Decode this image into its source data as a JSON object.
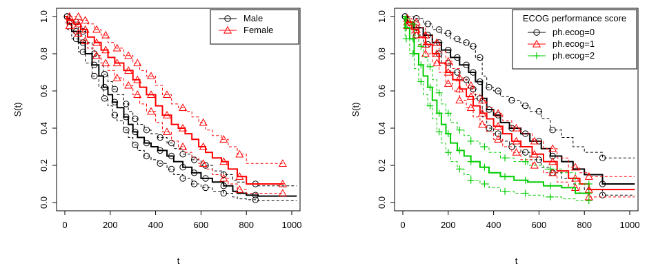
{
  "chart_data": [
    {
      "type": "line",
      "subtype": "kaplan-meier",
      "title": "",
      "xlabel": "t",
      "ylabel": "S(t)",
      "xlim": [
        0,
        1000
      ],
      "ylim": [
        0,
        1
      ],
      "x_ticks": [
        0,
        200,
        400,
        600,
        800,
        1000
      ],
      "y_ticks": [
        0.0,
        0.2,
        0.4,
        0.6,
        0.8,
        1.0
      ],
      "y_tick_labels": [
        "0.0",
        "0.2",
        "0.4",
        "0.6",
        "0.8",
        "1.0"
      ],
      "grid": false,
      "legend": {
        "position": "top-right",
        "title": ""
      },
      "series": [
        {
          "name": "Male",
          "color": "#000000",
          "marker": "circle",
          "x": [
            0,
            12,
            30,
            60,
            90,
            120,
            150,
            170,
            190,
            210,
            230,
            260,
            280,
            300,
            320,
            350,
            380,
            410,
            450,
            480,
            520,
            560,
            600,
            650,
            700,
            740,
            760,
            800,
            850,
            1022
          ],
          "y": [
            1.0,
            0.96,
            0.92,
            0.86,
            0.8,
            0.74,
            0.68,
            0.62,
            0.58,
            0.54,
            0.51,
            0.46,
            0.42,
            0.38,
            0.35,
            0.32,
            0.3,
            0.28,
            0.25,
            0.22,
            0.19,
            0.16,
            0.13,
            0.11,
            0.09,
            0.06,
            0.05,
            0.04,
            0.035,
            0.035
          ],
          "ci_lower": [
            1.0,
            0.93,
            0.88,
            0.81,
            0.75,
            0.68,
            0.62,
            0.56,
            0.52,
            0.47,
            0.44,
            0.39,
            0.35,
            0.31,
            0.28,
            0.25,
            0.23,
            0.21,
            0.18,
            0.15,
            0.13,
            0.1,
            0.08,
            0.06,
            0.05,
            0.03,
            0.02,
            0.015,
            0.01,
            0.01
          ],
          "ci_upper": [
            1.0,
            0.99,
            0.97,
            0.92,
            0.86,
            0.8,
            0.75,
            0.69,
            0.65,
            0.61,
            0.58,
            0.53,
            0.49,
            0.45,
            0.42,
            0.39,
            0.37,
            0.35,
            0.32,
            0.29,
            0.26,
            0.23,
            0.2,
            0.17,
            0.15,
            0.12,
            0.11,
            0.1,
            0.09,
            0.09
          ],
          "censor_x": [
            10,
            50,
            80,
            130,
            175,
            220,
            270,
            310,
            360,
            420,
            470,
            520,
            570,
            620,
            700,
            840
          ]
        },
        {
          "name": "Female",
          "color": "#ff0000",
          "marker": "triangle",
          "x": [
            0,
            10,
            40,
            70,
            100,
            130,
            160,
            190,
            220,
            260,
            300,
            330,
            360,
            400,
            430,
            470,
            500,
            530,
            560,
            590,
            620,
            650,
            690,
            720,
            760,
            800,
            965
          ],
          "y": [
            1.0,
            0.98,
            0.96,
            0.93,
            0.89,
            0.86,
            0.82,
            0.78,
            0.75,
            0.71,
            0.66,
            0.62,
            0.58,
            0.52,
            0.47,
            0.42,
            0.4,
            0.37,
            0.34,
            0.3,
            0.27,
            0.24,
            0.22,
            0.18,
            0.14,
            0.1,
            0.1
          ],
          "ci_lower": [
            1.0,
            0.95,
            0.91,
            0.87,
            0.83,
            0.79,
            0.75,
            0.71,
            0.67,
            0.63,
            0.58,
            0.53,
            0.49,
            0.43,
            0.38,
            0.33,
            0.3,
            0.27,
            0.24,
            0.21,
            0.18,
            0.15,
            0.13,
            0.1,
            0.07,
            0.05,
            0.05
          ],
          "ci_upper": [
            1.0,
            1.0,
            1.0,
            0.98,
            0.96,
            0.93,
            0.9,
            0.86,
            0.83,
            0.79,
            0.75,
            0.71,
            0.68,
            0.63,
            0.58,
            0.53,
            0.51,
            0.49,
            0.46,
            0.43,
            0.39,
            0.36,
            0.34,
            0.3,
            0.26,
            0.21,
            0.21
          ],
          "censor_x": [
            20,
            60,
            90,
            140,
            180,
            230,
            280,
            320,
            380,
            450,
            520,
            610,
            700,
            770,
            960
          ]
        }
      ]
    },
    {
      "type": "line",
      "subtype": "kaplan-meier",
      "title": "",
      "xlabel": "t",
      "ylabel": "S(t)",
      "xlim": [
        0,
        1000
      ],
      "ylim": [
        0,
        1
      ],
      "x_ticks": [
        0,
        200,
        400,
        600,
        800,
        1000
      ],
      "y_ticks": [
        0.0,
        0.2,
        0.4,
        0.6,
        0.8,
        1.0
      ],
      "y_tick_labels": [
        "0.0",
        "0.2",
        "0.4",
        "0.6",
        "0.8",
        "1.0"
      ],
      "grid": false,
      "legend": {
        "position": "top-right",
        "title": "ECOG performance score"
      },
      "series": [
        {
          "name": "ph.ecog=0",
          "color": "#000000",
          "marker": "circle",
          "x": [
            0,
            20,
            50,
            90,
            130,
            170,
            210,
            250,
            290,
            320,
            350,
            370,
            400,
            430,
            470,
            520,
            560,
            610,
            650,
            700,
            750,
            800,
            880,
            1022
          ],
          "y": [
            1.0,
            0.97,
            0.94,
            0.9,
            0.86,
            0.82,
            0.78,
            0.74,
            0.7,
            0.65,
            0.56,
            0.5,
            0.47,
            0.43,
            0.4,
            0.37,
            0.33,
            0.29,
            0.25,
            0.22,
            0.18,
            0.15,
            0.1,
            0.1
          ],
          "ci_lower": [
            1.0,
            0.94,
            0.9,
            0.85,
            0.8,
            0.75,
            0.7,
            0.66,
            0.61,
            0.56,
            0.46,
            0.4,
            0.37,
            0.33,
            0.3,
            0.27,
            0.23,
            0.19,
            0.16,
            0.13,
            0.1,
            0.07,
            0.04,
            0.04
          ],
          "ci_upper": [
            1.0,
            1.0,
            0.99,
            0.96,
            0.93,
            0.91,
            0.88,
            0.86,
            0.84,
            0.78,
            0.68,
            0.62,
            0.6,
            0.57,
            0.55,
            0.52,
            0.49,
            0.45,
            0.39,
            0.35,
            0.3,
            0.27,
            0.24,
            0.24
          ],
          "censor_x": [
            10,
            60,
            110,
            160,
            200,
            240,
            280,
            310,
            340,
            380,
            420,
            480,
            540,
            600,
            660,
            880
          ]
        },
        {
          "name": "ph.ecog=1",
          "color": "#ff0000",
          "marker": "triangle",
          "x": [
            0,
            15,
            40,
            70,
            100,
            130,
            160,
            190,
            220,
            250,
            280,
            310,
            340,
            370,
            400,
            440,
            480,
            520,
            570,
            620,
            680,
            730,
            780,
            820,
            1022
          ],
          "y": [
            1.0,
            0.97,
            0.93,
            0.89,
            0.85,
            0.8,
            0.75,
            0.7,
            0.66,
            0.61,
            0.57,
            0.52,
            0.48,
            0.45,
            0.41,
            0.37,
            0.33,
            0.3,
            0.26,
            0.22,
            0.17,
            0.13,
            0.1,
            0.07,
            0.07
          ],
          "ci_lower": [
            1.0,
            0.95,
            0.9,
            0.85,
            0.8,
            0.75,
            0.7,
            0.64,
            0.6,
            0.55,
            0.51,
            0.46,
            0.42,
            0.38,
            0.34,
            0.3,
            0.27,
            0.23,
            0.2,
            0.16,
            0.11,
            0.08,
            0.05,
            0.03,
            0.03
          ],
          "ci_upper": [
            1.0,
            0.99,
            0.97,
            0.94,
            0.9,
            0.86,
            0.81,
            0.76,
            0.72,
            0.67,
            0.63,
            0.58,
            0.55,
            0.51,
            0.48,
            0.44,
            0.4,
            0.37,
            0.33,
            0.29,
            0.24,
            0.19,
            0.16,
            0.14,
            0.14
          ],
          "censor_x": [
            20,
            60,
            100,
            150,
            200,
            250,
            300,
            350,
            420,
            500,
            580,
            660,
            760,
            820
          ]
        },
        {
          "name": "ph.ecog=2",
          "color": "#00cc00",
          "marker": "plus",
          "x": [
            0,
            10,
            30,
            50,
            70,
            90,
            110,
            130,
            150,
            170,
            190,
            210,
            240,
            270,
            300,
            340,
            380,
            430,
            490,
            550,
            620,
            700,
            760,
            820
          ],
          "y": [
            1.0,
            0.94,
            0.88,
            0.8,
            0.74,
            0.68,
            0.62,
            0.55,
            0.48,
            0.42,
            0.37,
            0.32,
            0.28,
            0.25,
            0.22,
            0.19,
            0.16,
            0.14,
            0.12,
            0.11,
            0.09,
            0.08,
            0.05,
            0.05
          ],
          "ci_lower": [
            1.0,
            0.88,
            0.8,
            0.72,
            0.65,
            0.58,
            0.52,
            0.45,
            0.38,
            0.32,
            0.27,
            0.22,
            0.18,
            0.15,
            0.12,
            0.1,
            0.08,
            0.06,
            0.05,
            0.04,
            0.03,
            0.02,
            0.01,
            0.01
          ],
          "ci_upper": [
            1.0,
            0.99,
            0.96,
            0.9,
            0.84,
            0.78,
            0.73,
            0.66,
            0.59,
            0.53,
            0.48,
            0.43,
            0.39,
            0.36,
            0.33,
            0.3,
            0.27,
            0.24,
            0.22,
            0.2,
            0.18,
            0.16,
            0.1,
            0.1
          ],
          "censor_x": [
            15,
            45,
            80,
            120,
            160,
            200,
            250,
            300,
            360,
            450,
            540,
            650,
            820
          ]
        }
      ]
    }
  ]
}
